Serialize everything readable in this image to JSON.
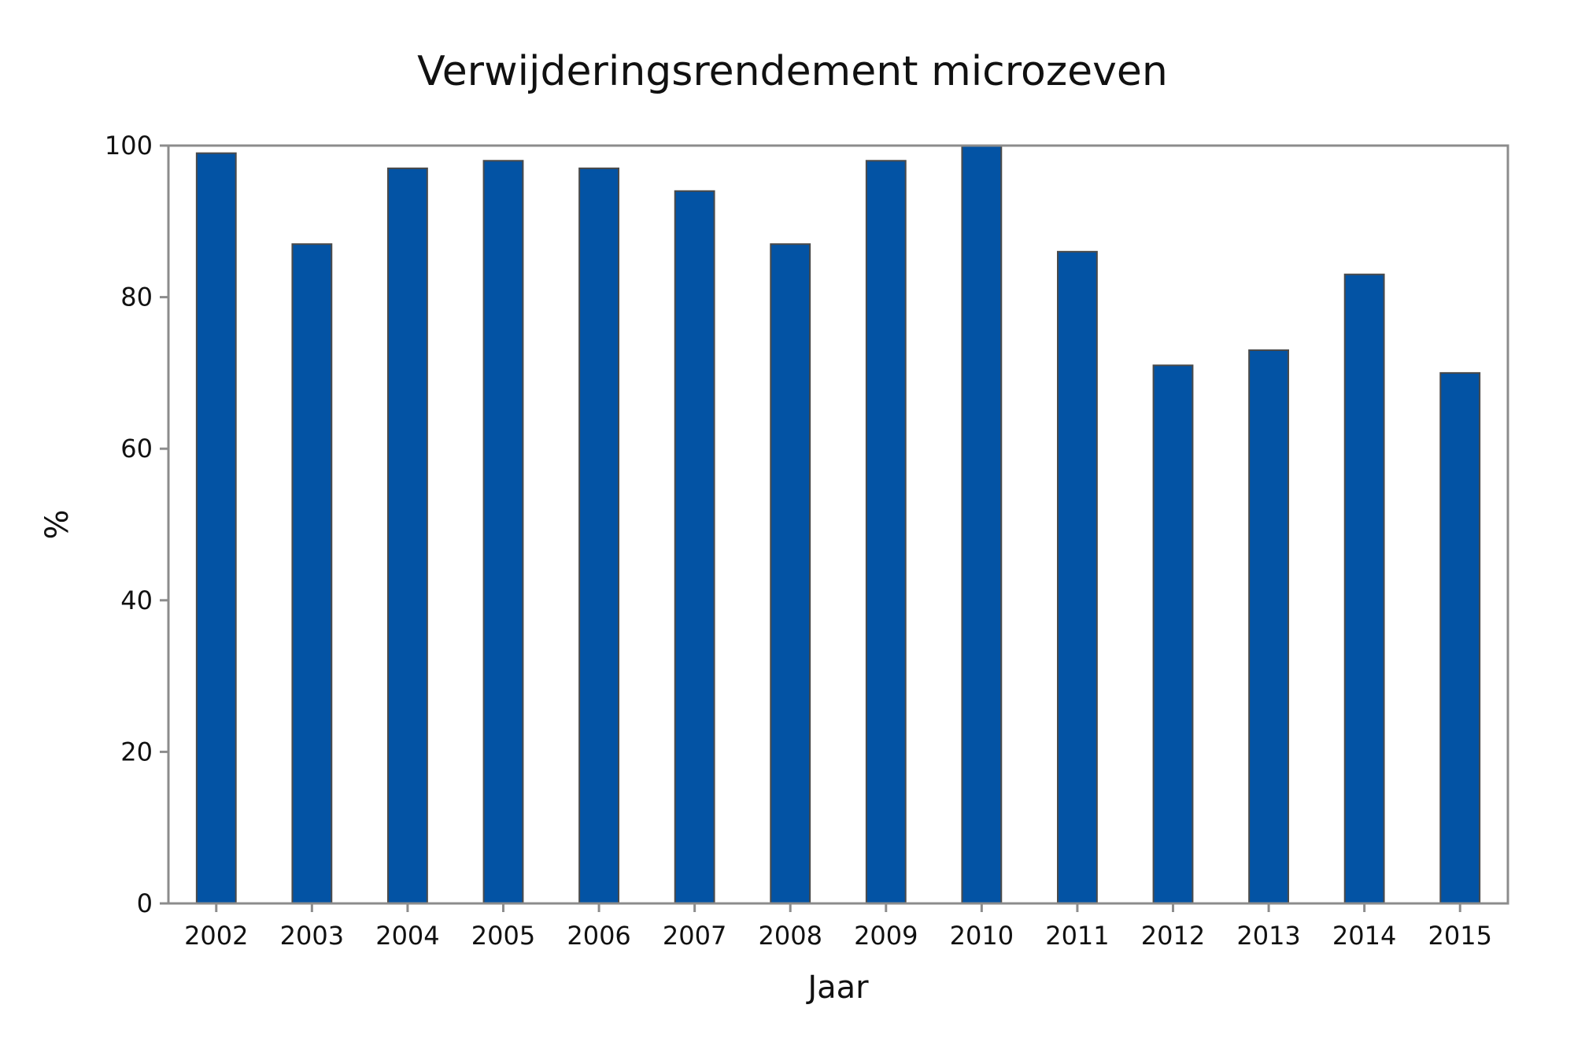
{
  "chart_data": {
    "type": "bar",
    "title": "Verwijderingsrendement microzeven",
    "xlabel": "Jaar",
    "ylabel": "%",
    "categories": [
      "2002",
      "2003",
      "2004",
      "2005",
      "2006",
      "2007",
      "2008",
      "2009",
      "2010",
      "2011",
      "2012",
      "2013",
      "2014",
      "2015"
    ],
    "values": [
      99,
      87,
      97,
      98,
      97,
      94,
      87,
      98,
      100,
      86,
      71,
      73,
      83,
      70
    ],
    "ylim": [
      0,
      100
    ],
    "yticks": [
      "0",
      "20",
      "40",
      "60",
      "80",
      "100"
    ],
    "grid": false,
    "legend": "none",
    "colors": {
      "bar": "#0353a4",
      "bar_edge": "#4a4a4a",
      "frame": "#8c8c8c"
    }
  }
}
